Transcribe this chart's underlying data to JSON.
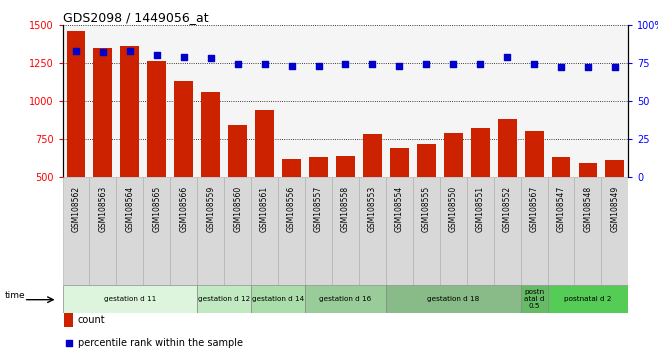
{
  "title": "GDS2098 / 1449056_at",
  "samples": [
    "GSM108562",
    "GSM108563",
    "GSM108564",
    "GSM108565",
    "GSM108566",
    "GSM108559",
    "GSM108560",
    "GSM108561",
    "GSM108556",
    "GSM108557",
    "GSM108558",
    "GSM108553",
    "GSM108554",
    "GSM108555",
    "GSM108550",
    "GSM108551",
    "GSM108552",
    "GSM108567",
    "GSM108547",
    "GSM108548",
    "GSM108549"
  ],
  "counts": [
    1460,
    1350,
    1360,
    1260,
    1130,
    1060,
    840,
    940,
    620,
    630,
    640,
    780,
    690,
    720,
    790,
    820,
    880,
    800,
    630,
    590,
    610
  ],
  "percentiles": [
    83,
    82,
    83,
    80,
    79,
    78,
    74,
    74,
    73,
    73,
    74,
    74,
    73,
    74,
    74,
    74,
    79,
    74,
    72,
    72,
    72
  ],
  "ymin": 500,
  "ymax": 1500,
  "pmin": 0,
  "pmax": 100,
  "yticks": [
    500,
    750,
    1000,
    1250,
    1500
  ],
  "pticks": [
    0,
    25,
    50,
    75,
    100
  ],
  "bar_color": "#cc2200",
  "dot_color": "#0000cc",
  "groups": [
    {
      "label": "gestation d 11",
      "start": 0,
      "end": 5,
      "color": "#ddf5dd"
    },
    {
      "label": "gestation d 12",
      "start": 5,
      "end": 7,
      "color": "#c2eac2"
    },
    {
      "label": "gestation d 14",
      "start": 7,
      "end": 9,
      "color": "#aaddaa"
    },
    {
      "label": "gestation d 16",
      "start": 9,
      "end": 12,
      "color": "#99cc99"
    },
    {
      "label": "gestation d 18",
      "start": 12,
      "end": 17,
      "color": "#88bb88"
    },
    {
      "label": "postn\natal d\n0.5",
      "start": 17,
      "end": 18,
      "color": "#66bb66"
    },
    {
      "label": "postnatal d 2",
      "start": 18,
      "end": 21,
      "color": "#55cc55"
    }
  ]
}
